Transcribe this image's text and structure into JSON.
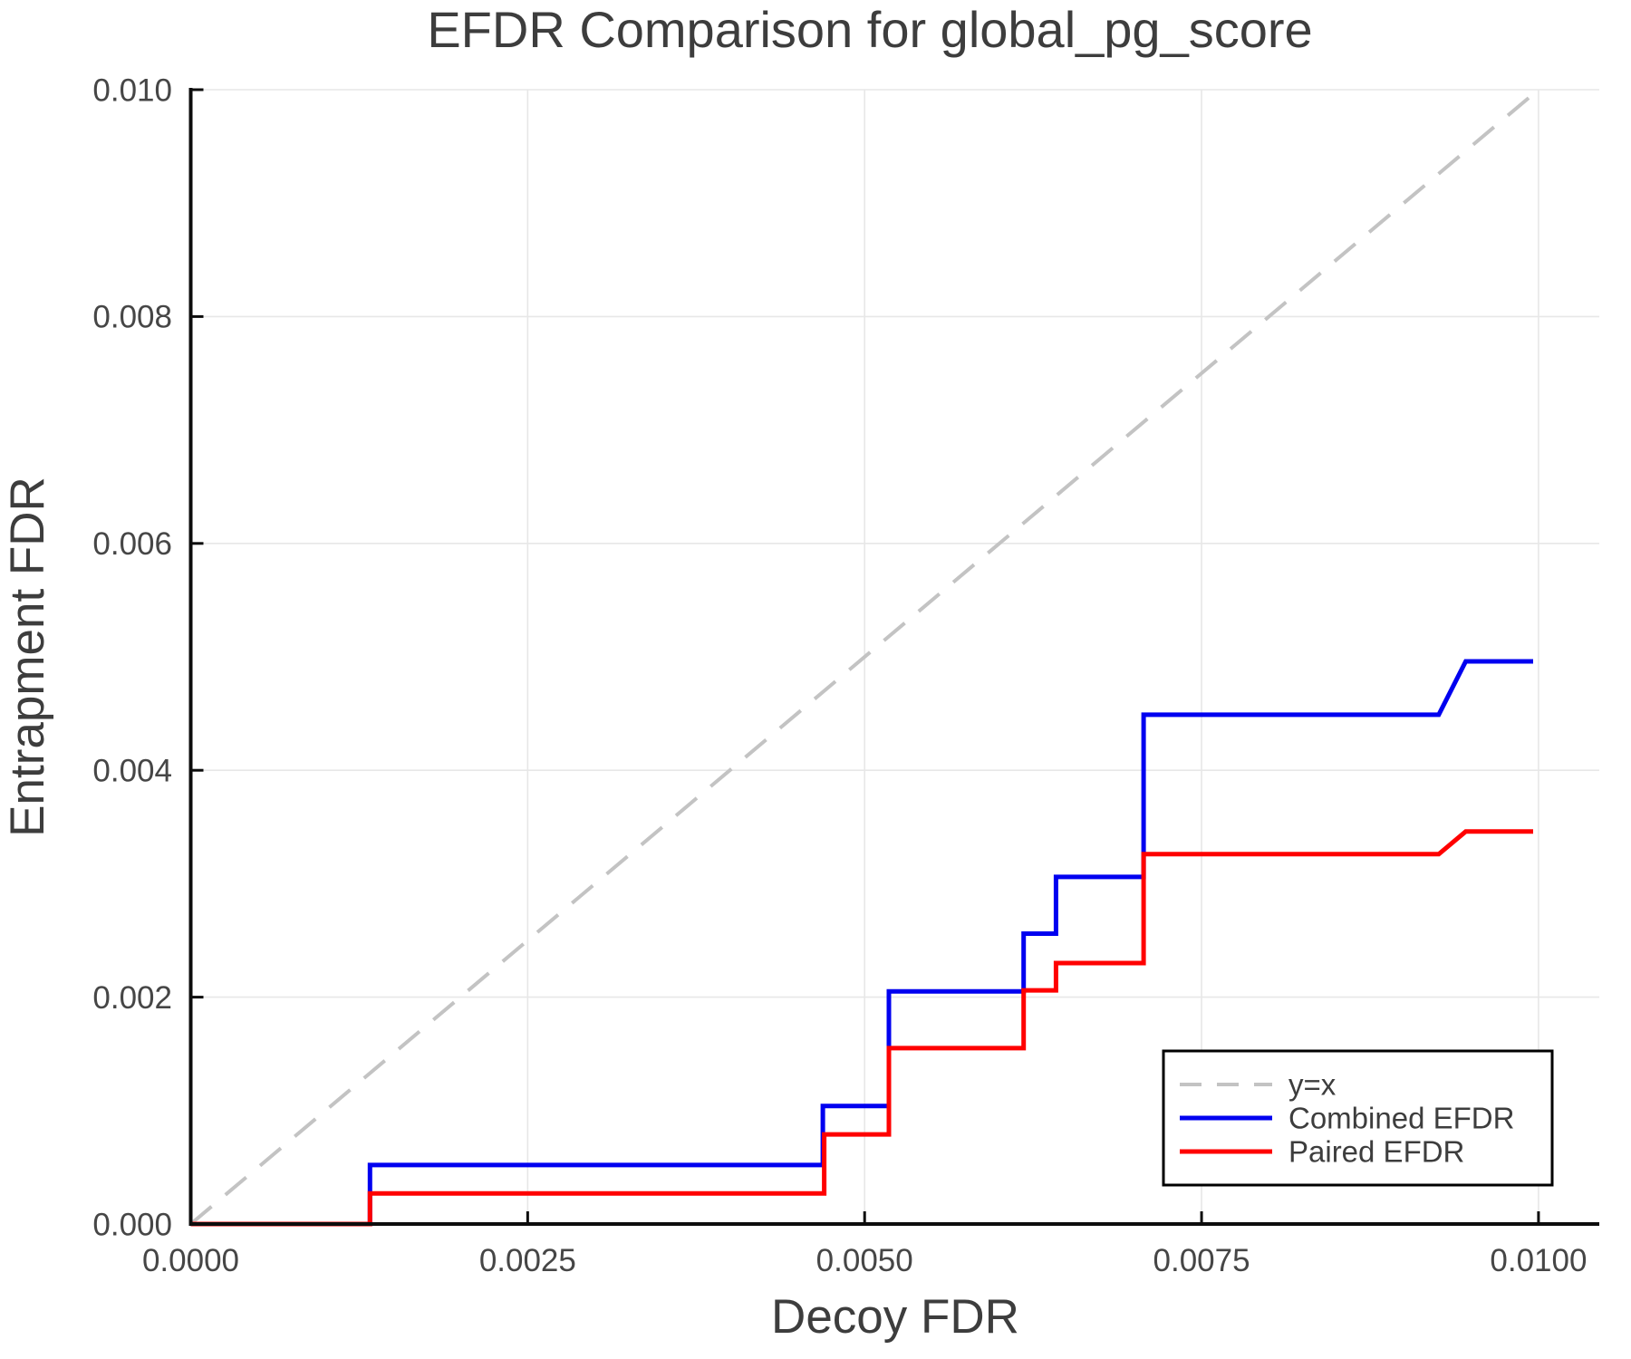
{
  "chart_data": {
    "type": "line",
    "title": "EFDR Comparison for global_pg_score",
    "xlabel": "Decoy FDR",
    "ylabel": "Entrapment FDR",
    "xlim": [
      0,
      0.010451
    ],
    "ylim": [
      0,
      0.01
    ],
    "grid": true,
    "x_ticks": [
      {
        "value": 0.0,
        "label": "0.0000"
      },
      {
        "value": 0.0025,
        "label": "0.0025"
      },
      {
        "value": 0.005,
        "label": "0.0050"
      },
      {
        "value": 0.0075,
        "label": "0.0075"
      },
      {
        "value": 0.01,
        "label": "0.0100"
      }
    ],
    "y_ticks": [
      {
        "value": 0.0,
        "label": "0.000"
      },
      {
        "value": 0.002,
        "label": "0.002"
      },
      {
        "value": 0.004,
        "label": "0.004"
      },
      {
        "value": 0.006,
        "label": "0.006"
      },
      {
        "value": 0.008,
        "label": "0.008"
      },
      {
        "value": 0.01,
        "label": "0.010"
      }
    ],
    "series": [
      {
        "name": "y=x",
        "style": "dashed",
        "color": "#c3c3c3",
        "points": [
          [
            0,
            0
          ],
          [
            0.01,
            0.01
          ]
        ]
      },
      {
        "name": "Combined EFDR",
        "style": "step",
        "color": "#0000f0",
        "points": [
          [
            0,
            0
          ],
          [
            0.00133,
            0
          ],
          [
            0.00133,
            0.00052
          ],
          [
            0.00469,
            0.00052
          ],
          [
            0.00469,
            0.00104
          ],
          [
            0.00518,
            0.00104
          ],
          [
            0.00518,
            0.00205
          ],
          [
            0.00618,
            0.00205
          ],
          [
            0.00618,
            0.00256
          ],
          [
            0.00642,
            0.00256
          ],
          [
            0.00642,
            0.00306
          ],
          [
            0.00707,
            0.00306
          ],
          [
            0.00707,
            0.00449
          ],
          [
            0.00926,
            0.00449
          ],
          [
            0.00946,
            0.00496
          ],
          [
            0.00996,
            0.00496
          ]
        ]
      },
      {
        "name": "Paired EFDR",
        "style": "step",
        "color": "#ff0000",
        "points": [
          [
            0,
            0
          ],
          [
            0.00133,
            0
          ],
          [
            0.00133,
            0.00027
          ],
          [
            0.0047,
            0.00027
          ],
          [
            0.0047,
            0.00079
          ],
          [
            0.00518,
            0.00079
          ],
          [
            0.00518,
            0.00155
          ],
          [
            0.00618,
            0.00155
          ],
          [
            0.00618,
            0.00206
          ],
          [
            0.00642,
            0.00206
          ],
          [
            0.00642,
            0.0023
          ],
          [
            0.00707,
            0.0023
          ],
          [
            0.00707,
            0.00326
          ],
          [
            0.00926,
            0.00326
          ],
          [
            0.00946,
            0.00346
          ],
          [
            0.00996,
            0.00346
          ]
        ]
      }
    ],
    "legend": {
      "position": "lower right",
      "entries": [
        "y=x",
        "Combined EFDR",
        "Paired EFDR"
      ]
    },
    "colors": {
      "axis": "#0d0d0d",
      "grid": "#e7e7e7",
      "text": "#3d3d3d",
      "tick_text": "#464646",
      "legend_border": "#000000",
      "legend_bg": "#ffffff",
      "background": "#ffffff"
    }
  }
}
